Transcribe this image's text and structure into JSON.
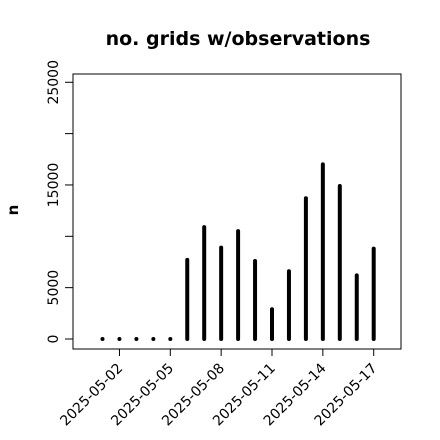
{
  "chart_data": {
    "type": "bar",
    "title": "no. grids w/observations",
    "xlabel": "",
    "ylabel": "n",
    "ylim": [
      0,
      26000
    ],
    "yticks": [
      0,
      5000,
      15000,
      25000
    ],
    "yticks_minor": [
      10000,
      20000
    ],
    "grid": false,
    "legend": "none",
    "categories": [
      "2025-05-01",
      "2025-05-02",
      "2025-05-03",
      "2025-05-04",
      "2025-05-05",
      "2025-05-06",
      "2025-05-07",
      "2025-05-08",
      "2025-05-09",
      "2025-05-10",
      "2025-05-11",
      "2025-05-12",
      "2025-05-13",
      "2025-05-14",
      "2025-05-15",
      "2025-05-16",
      "2025-05-17"
    ],
    "values": [
      0,
      0,
      0,
      0,
      0,
      7700,
      10900,
      8900,
      10500,
      7600,
      2900,
      6600,
      13700,
      17000,
      14900,
      6200,
      8800
    ],
    "xtick_labels": [
      "2025-05-02",
      "2025-05-05",
      "2025-05-08",
      "2025-05-11",
      "2025-05-14",
      "2025-05-17"
    ],
    "highlight_tick": "2025-05-08",
    "colors": {
      "bars": "#000000",
      "highlight_tick": "#228B22",
      "text": "#000000"
    }
  }
}
